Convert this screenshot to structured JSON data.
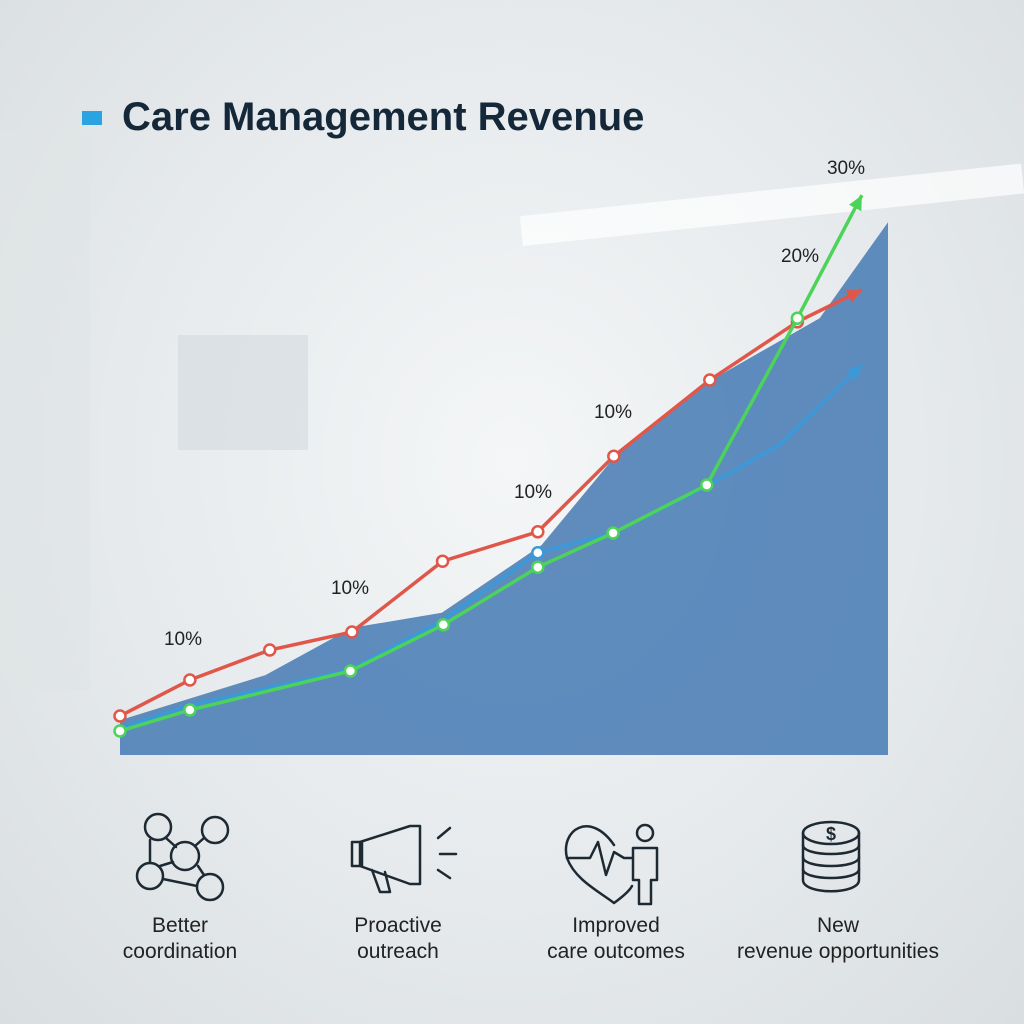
{
  "chart_data": {
    "type": "line",
    "title": "Care Management Revenue",
    "xlim": [
      0,
      100
    ],
    "ylim": [
      0,
      100
    ],
    "area": {
      "color": "#4a7db5",
      "x": [
        0,
        18.9,
        30.2,
        41.9,
        54.9,
        64.6,
        77,
        91.1,
        100
      ],
      "values": [
        5.8,
        13.3,
        21.2,
        23.7,
        35,
        50,
        62.5,
        72.8,
        88.8
      ]
    },
    "series": [
      {
        "color": "#e0574a",
        "x": [
          0,
          9.1,
          19.5,
          30.2,
          42,
          54.4,
          64.3,
          76.8,
          88.2,
          96.6
        ],
        "values": [
          6.5,
          12.5,
          17.5,
          20.5,
          32.3,
          37.2,
          49.8,
          62.5,
          72.2,
          77.5
        ]
      },
      {
        "color": "#3a9ad9",
        "x": [
          0,
          9.1,
          30,
          42.1,
          54.4,
          64.2,
          76.4,
          85.9,
          96.6
        ],
        "values": [
          4.5,
          8.3,
          14.2,
          22.5,
          33.7,
          37,
          44.8,
          51.7,
          65
        ]
      },
      {
        "color": "#4cd35a",
        "x": [
          0,
          9.1,
          30,
          42.1,
          54.4,
          64.2,
          76.4,
          88.2,
          96.6
        ],
        "values": [
          4,
          7.5,
          14,
          21.7,
          31.3,
          37,
          45,
          72.8,
          93.3
        ]
      }
    ],
    "annotations": [
      "10%",
      "10%",
      "10%",
      "10%",
      "20%",
      "30%"
    ],
    "features": [
      "Better coordination",
      "Proactive outreach",
      "Improved care outcomes",
      "New revenue opportunities"
    ]
  }
}
